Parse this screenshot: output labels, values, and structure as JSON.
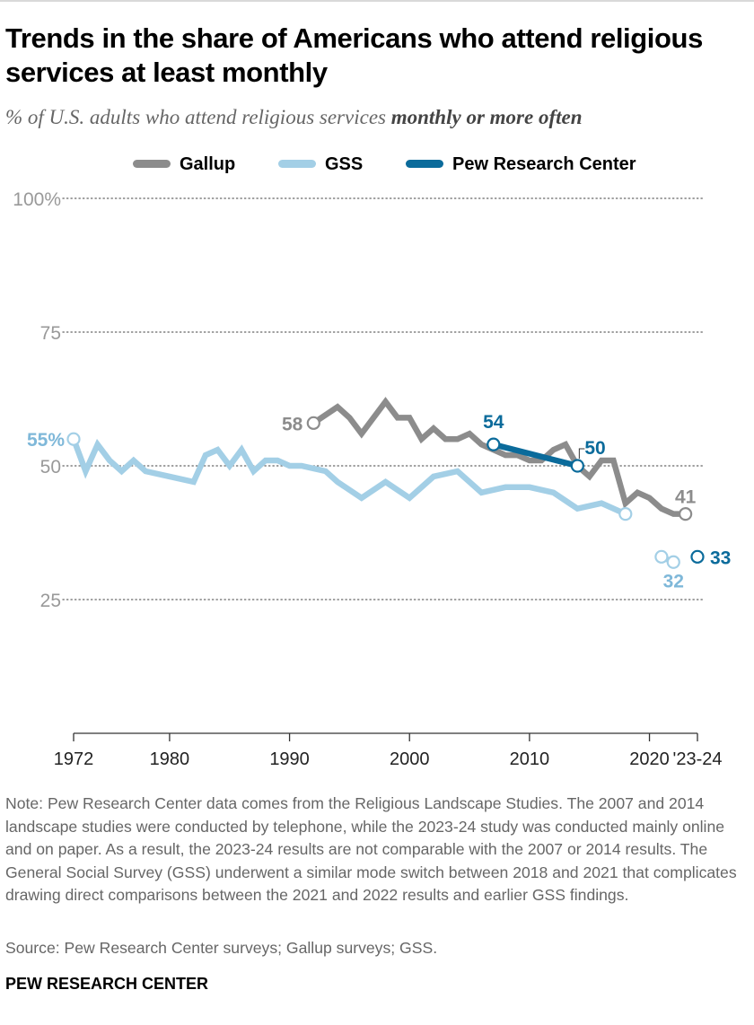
{
  "title": "Trends in the share of Americans who attend religious services at least monthly",
  "subtitle_prefix": "% of U.S. adults who attend religious services ",
  "subtitle_emphasis": "monthly or more often",
  "note": "Note: Pew Research Center data comes from the Religious Landscape Studies. The 2007 and 2014 landscape studies were conducted by telephone, while the 2023-24 study was conducted mainly online and on paper. As a result, the 2023-24 results are not comparable with the 2007 or 2014 results. The General Social Survey (GSS) underwent a similar mode switch between 2018 and 2021 that complicates drawing direct comparisons between the 2021 and 2022 results and earlier GSS findings.",
  "source": "Source: Pew Research Center surveys; Gallup surveys; GSS.",
  "brand": "PEW RESEARCH CENTER",
  "colors": {
    "gallup": "#8c8c8c",
    "gss": "#a3cfe6",
    "pew": "#0b6b9b",
    "gridline": "#666666",
    "axis_text": "#999999"
  },
  "chart_data": {
    "type": "line",
    "ylim": [
      0,
      100
    ],
    "yticks": [
      25,
      50,
      75,
      100
    ],
    "ytick_labels": [
      "25",
      "50",
      "75",
      "100%"
    ],
    "xlim": [
      1972,
      2024
    ],
    "xticks": [
      1972,
      1980,
      1990,
      2000,
      2010,
      2020,
      2024
    ],
    "xtick_labels": [
      "1972",
      "1980",
      "1990",
      "2000",
      "2010",
      "2020",
      "'23-24"
    ],
    "grid": true,
    "legend": "top",
    "series": [
      {
        "name": "Gallup",
        "color": "#8c8c8c",
        "x": [
          1992,
          1994,
          1995,
          1996,
          1997,
          1998,
          1999,
          2000,
          2001,
          2002,
          2003,
          2004,
          2005,
          2006,
          2007,
          2008,
          2009,
          2010,
          2011,
          2012,
          2013,
          2014,
          2015,
          2016,
          2017,
          2018,
          2019,
          2020,
          2021,
          2022,
          2023
        ],
        "values": [
          58,
          61,
          59,
          56,
          59,
          62,
          59,
          59,
          55,
          57,
          55,
          55,
          56,
          54,
          53,
          52,
          52,
          51,
          51,
          53,
          54,
          50,
          48,
          51,
          51,
          43,
          45,
          44,
          42,
          41,
          41
        ],
        "labels": [
          {
            "x": 1992,
            "text": "58"
          },
          {
            "x": 2023,
            "text": "41"
          }
        ]
      },
      {
        "name": "GSS",
        "color": "#a3cfe6",
        "x": [
          1972,
          1973,
          1974,
          1975,
          1976,
          1977,
          1978,
          1980,
          1982,
          1983,
          1984,
          1985,
          1986,
          1987,
          1988,
          1989,
          1990,
          1991,
          1993,
          1994,
          1996,
          1998,
          2000,
          2002,
          2004,
          2006,
          2008,
          2010,
          2012,
          2014,
          2016,
          2018
        ],
        "values": [
          55,
          49,
          54,
          51,
          49,
          51,
          49,
          48,
          47,
          52,
          53,
          50,
          53,
          49,
          51,
          51,
          50,
          50,
          49,
          47,
          44,
          47,
          44,
          48,
          49,
          45,
          46,
          46,
          45,
          42,
          43,
          41
        ],
        "labels": [
          {
            "x": 1972,
            "text": "55%"
          }
        ]
      },
      {
        "name": "GSS",
        "color": "#a3cfe6",
        "x": [
          2021,
          2022
        ],
        "values": [
          33,
          32
        ],
        "labels": [
          {
            "x": 2022,
            "text": "32"
          }
        ]
      },
      {
        "name": "Pew Research Center",
        "color": "#0b6b9b",
        "x": [
          2007,
          2014
        ],
        "values": [
          54,
          50
        ],
        "labels": [
          {
            "x": 2007,
            "text": "54"
          },
          {
            "x": 2014,
            "text": "50"
          }
        ]
      },
      {
        "name": "Pew Research Center",
        "color": "#0b6b9b",
        "x": [
          2024
        ],
        "values": [
          33
        ],
        "labels": [
          {
            "x": 2024,
            "text": "33"
          }
        ]
      }
    ]
  }
}
